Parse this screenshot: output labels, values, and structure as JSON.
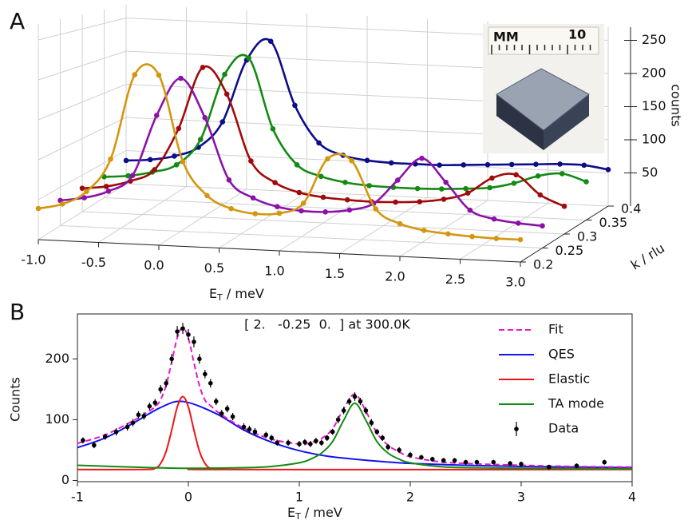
{
  "chart_data": [
    {
      "type": "line3d",
      "panel_label": "A",
      "x": [
        -1,
        -0.8,
        -0.6,
        -0.4,
        -0.2,
        0,
        0.2,
        0.4,
        0.6,
        0.8,
        1,
        1.2,
        1.4,
        1.6,
        1.8,
        2,
        2.2,
        2.4,
        2.6,
        2.8,
        3
      ],
      "xlim": [
        -1,
        3
      ],
      "xticks": [
        {
          "value": -1,
          "label": "-1.0"
        },
        -0.5,
        {
          "value": 0,
          "label": "0.0"
        },
        0.5,
        {
          "value": 1,
          "label": "1.0"
        },
        1.5,
        {
          "value": 2,
          "label": "2.0"
        },
        2.5,
        {
          "value": 3,
          "label": "3.0"
        }
      ],
      "xlabel": [
        "E",
        "T",
        " / meV"
      ],
      "klim": [
        0.2,
        0.4
      ],
      "kticks": [
        0.2,
        0.25,
        0.3,
        0.35,
        0.4
      ],
      "klabel": "k / rlu",
      "zlim": [
        0,
        270
      ],
      "zticks": [
        50,
        100,
        150,
        200,
        250
      ],
      "zlabel": "counts",
      "grid": true,
      "inset_text": [
        "MM",
        "10"
      ],
      "series": [
        {
          "color": "#0d0d8a",
          "k": 0.4,
          "values": [
            35,
            38,
            45,
            60,
            100,
            195,
            225,
            130,
            75,
            58,
            52,
            50,
            50,
            50,
            52,
            54,
            56,
            58,
            60,
            60,
            55
          ]
        },
        {
          "color": "#138a13",
          "k": 0.35,
          "values": [
            30,
            33,
            40,
            52,
            90,
            185,
            210,
            110,
            60,
            45,
            38,
            35,
            34,
            34,
            35,
            37,
            40,
            48,
            60,
            65,
            55
          ]
        },
        {
          "color": "#a00a0a",
          "k": 0.3,
          "values": [
            32,
            36,
            45,
            62,
            120,
            205,
            170,
            80,
            52,
            40,
            35,
            33,
            32,
            33,
            35,
            40,
            50,
            72,
            78,
            52,
            38
          ]
        },
        {
          "color": "#8b12a8",
          "k": 0.25,
          "values": [
            33,
            38,
            48,
            70,
            150,
            200,
            150,
            70,
            48,
            38,
            34,
            34,
            38,
            48,
            80,
            110,
            80,
            45,
            35,
            31,
            29
          ]
        },
        {
          "color": "#d4960e",
          "k": 0.2,
          "values": [
            39,
            46,
            63,
            105,
            212,
            213,
            106,
            65,
            50,
            45,
            47,
            61,
            118,
            117,
            58,
            41,
            34,
            31,
            29,
            28,
            28
          ]
        }
      ]
    },
    {
      "type": "line",
      "panel_label": "B",
      "annotation": "[ 2.   -0.25  0.  ] at 300.0K",
      "xlim": [
        -1,
        4
      ],
      "xticks": [
        -1,
        0,
        1,
        2,
        3,
        4
      ],
      "ylim": [
        -2,
        274
      ],
      "yticks": [
        0,
        100,
        200
      ],
      "xlabel": [
        "E",
        "T",
        " / meV"
      ],
      "ylabel": "Counts",
      "legend": "upper right",
      "series": [
        {
          "name": "Fit",
          "color": "#e619c8",
          "dashed": true,
          "x": [
            -1,
            -0.75,
            -0.5,
            -0.4,
            -0.3,
            -0.25,
            -0.2,
            -0.15,
            -0.1,
            -0.05,
            0,
            0.05,
            0.1,
            0.15,
            0.2,
            0.3,
            0.5,
            0.75,
            1,
            1.1,
            1.2,
            1.3,
            1.4,
            1.5,
            1.6,
            1.7,
            1.8,
            1.9,
            2,
            2.25,
            2.5,
            3,
            3.5,
            4
          ],
          "values": [
            61,
            75,
            98,
            109,
            121,
            133,
            157,
            195,
            235,
            252,
            234,
            194,
            156,
            132,
            123,
            108,
            86,
            68,
            60,
            62,
            69,
            85,
            118,
            142,
            114,
            78,
            58,
            47,
            39,
            31,
            28,
            25,
            23,
            22
          ]
        },
        {
          "name": "QES",
          "color": "#1414ee",
          "x": [
            -1,
            -0.75,
            -0.5,
            -0.25,
            -0.05,
            0.25,
            0.5,
            0.75,
            1,
            1.25,
            1.5,
            1.75,
            2,
            2.5,
            3,
            3.5,
            4
          ],
          "values": [
            54,
            70,
            94,
            120,
            130,
            110,
            83,
            63,
            49,
            40,
            35,
            31,
            28,
            25,
            23,
            22,
            21
          ]
        },
        {
          "name": "Elastic",
          "color": "#ee1414",
          "x": [
            -1,
            -0.4,
            -0.3,
            -0.25,
            -0.2,
            -0.15,
            -0.1,
            -0.05,
            0,
            0.05,
            0.1,
            0.15,
            0.2,
            0.3,
            4
          ],
          "values": [
            18,
            18,
            20,
            28,
            48,
            83,
            121,
            138,
            121,
            83,
            48,
            28,
            20,
            18,
            18
          ]
        },
        {
          "name": "TA mode",
          "color": "#148a14",
          "x": [
            -1,
            -0.5,
            0,
            0.5,
            0.75,
            1,
            1.1,
            1.2,
            1.3,
            1.4,
            1.5,
            1.6,
            1.7,
            1.8,
            1.9,
            2,
            2.25,
            2.5,
            3,
            4
          ],
          "values": [
            25,
            22,
            20,
            21,
            23,
            29,
            35,
            45,
            64,
            99,
            127,
            99,
            64,
            45,
            35,
            29,
            23,
            21,
            20,
            19
          ]
        },
        {
          "name": "Data",
          "color": "#000000",
          "x": [
            -0.95,
            -0.85,
            -0.75,
            -0.65,
            -0.55,
            -0.5,
            -0.45,
            -0.4,
            -0.35,
            -0.3,
            -0.25,
            -0.2,
            -0.15,
            -0.1,
            -0.05,
            0,
            0.05,
            0.1,
            0.15,
            0.2,
            0.25,
            0.3,
            0.35,
            0.4,
            0.5,
            0.55,
            0.6,
            0.7,
            0.75,
            0.8,
            0.9,
            1,
            1.05,
            1.1,
            1.15,
            1.2,
            1.25,
            1.3,
            1.35,
            1.4,
            1.45,
            1.5,
            1.55,
            1.6,
            1.65,
            1.7,
            1.75,
            1.8,
            1.9,
            2,
            2.1,
            2.2,
            2.3,
            2.4,
            2.5,
            2.6,
            2.75,
            2.9,
            3,
            3.25,
            3.5,
            3.75
          ],
          "values": [
            66,
            58,
            72,
            80,
            88,
            95,
            108,
            106,
            122,
            128,
            150,
            160,
            200,
            245,
            250,
            240,
            228,
            200,
            175,
            160,
            130,
            110,
            118,
            105,
            88,
            84,
            80,
            75,
            70,
            62,
            62,
            60,
            63,
            60,
            65,
            62,
            70,
            80,
            100,
            115,
            130,
            138,
            130,
            115,
            95,
            80,
            70,
            55,
            50,
            42,
            38,
            35,
            33,
            33,
            30,
            30,
            30,
            28,
            27,
            22,
            24,
            30
          ],
          "errors": [
            5,
            5,
            5,
            6,
            6,
            6,
            6,
            6,
            6,
            6,
            7,
            7,
            8,
            9,
            9,
            9,
            9,
            8,
            7,
            7,
            6,
            6,
            6,
            6,
            6,
            6,
            6,
            5,
            5,
            5,
            5,
            5,
            5,
            5,
            5,
            5,
            5,
            5,
            6,
            6,
            6,
            7,
            6,
            6,
            6,
            5,
            5,
            5,
            5,
            5,
            4,
            4,
            4,
            4,
            4,
            4,
            4,
            4,
            4,
            4,
            4,
            4
          ]
        }
      ]
    }
  ]
}
